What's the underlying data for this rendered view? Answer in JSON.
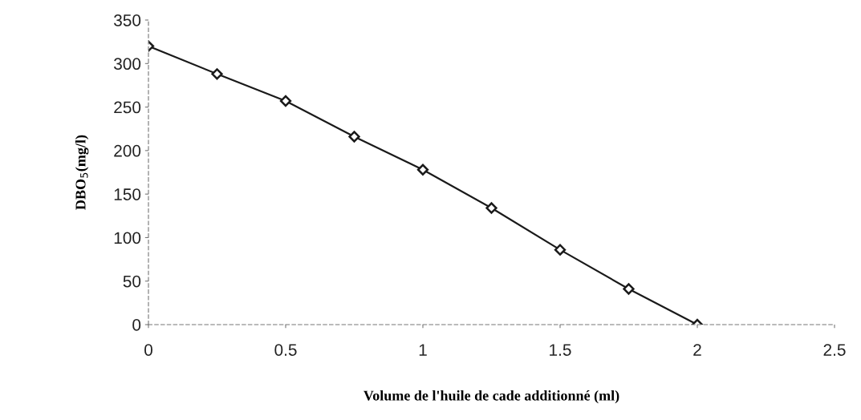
{
  "chart_data": {
    "type": "line",
    "xlabel": "Volume de l'huile de cade additionné (ml)",
    "ylabel": "DBO$_{5}$(mg/l)",
    "x": [
      0,
      0.25,
      0.5,
      0.75,
      1,
      1.25,
      1.5,
      1.75,
      2
    ],
    "series": [
      {
        "color": "#1a1a1a",
        "values": [
          320,
          288,
          257,
          216,
          178,
          134,
          86,
          41,
          0
        ]
      }
    ],
    "xlim": [
      0,
      2.5
    ],
    "xticks": [
      0,
      0.5,
      1,
      1.5,
      2,
      2.5
    ],
    "ylim": [
      0,
      350
    ],
    "yticks": [
      0,
      50,
      100,
      150,
      200,
      250,
      300,
      350
    ],
    "marker": "diamond",
    "line_style": "solid",
    "grid": false,
    "legend": false
  }
}
